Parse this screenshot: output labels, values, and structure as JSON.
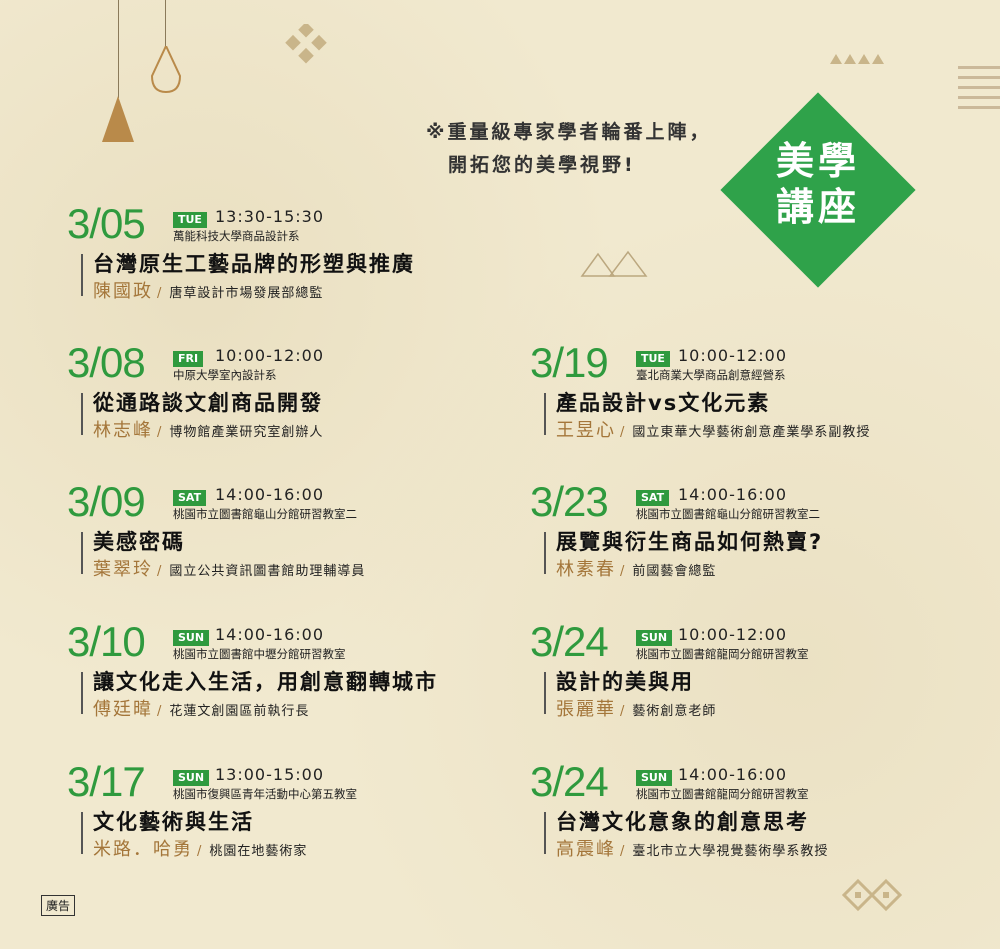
{
  "intro": {
    "line1": "※重量級專家學者輪番上陣，",
    "line2": "開拓您的美學視野!"
  },
  "badge": {
    "line1": "美學",
    "line2": "講座"
  },
  "colors": {
    "accent": "#2f9a3e",
    "speaker": "#a4763a",
    "background": "#f1e9cf"
  },
  "events": [
    {
      "date": "3/05",
      "day": "TUE",
      "time": "13:30-15:30",
      "venue": "萬能科技大學商品設計系",
      "title": "台灣原生工藝品牌的形塑與推廣",
      "speaker": "陳國政",
      "role": "唐草設計市場發展部總監"
    },
    {
      "date": "3/08",
      "day": "FRI",
      "time": "10:00-12:00",
      "venue": "中原大學室內設計系",
      "title": "從通路談文創商品開發",
      "speaker": "林志峰",
      "role": "博物館產業研究室創辦人"
    },
    {
      "date": "3/09",
      "day": "SAT",
      "time": "14:00-16:00",
      "venue": "桃園市立圖書館龜山分館研習教室二",
      "title": "美感密碼",
      "speaker": "葉翠玲",
      "role": "國立公共資訊圖書館助理輔導員"
    },
    {
      "date": "3/10",
      "day": "SUN",
      "time": "14:00-16:00",
      "venue": "桃園市立圖書館中壢分館研習教室",
      "title": "讓文化走入生活，用創意翻轉城市",
      "speaker": "傅廷暐",
      "role": "花蓮文創園區前執行長"
    },
    {
      "date": "3/17",
      "day": "SUN",
      "time": "13:00-15:00",
      "venue": "桃園市復興區青年活動中心第五教室",
      "title": "文化藝術與生活",
      "speaker": "米路．哈勇",
      "role": "桃園在地藝術家"
    },
    {
      "date": "3/19",
      "day": "TUE",
      "time": "10:00-12:00",
      "venue": "臺北商業大學商品創意經營系",
      "title": "產品設計vs文化元素",
      "speaker": "王昱心",
      "role": "國立東華大學藝術創意產業學系副教授"
    },
    {
      "date": "3/23",
      "day": "SAT",
      "time": "14:00-16:00",
      "venue": "桃園市立圖書館龜山分館研習教室二",
      "title": "展覽與衍生商品如何熱賣?",
      "speaker": "林素春",
      "role": "前國藝會總監"
    },
    {
      "date": "3/24",
      "day": "SUN",
      "time": "10:00-12:00",
      "venue": "桃園市立圖書館龍岡分館研習教室",
      "title": "設計的美與用",
      "speaker": "張麗華",
      "role": "藝術創意老師"
    },
    {
      "date": "3/24",
      "day": "SUN",
      "time": "14:00-16:00",
      "venue": "桃園市立圖書館龍岡分館研習教室",
      "title": "台灣文化意象的創意思考",
      "speaker": "高震峰",
      "role": "臺北市立大學視覺藝術學系教授"
    }
  ],
  "slash": "/",
  "ad_label": "廣告"
}
